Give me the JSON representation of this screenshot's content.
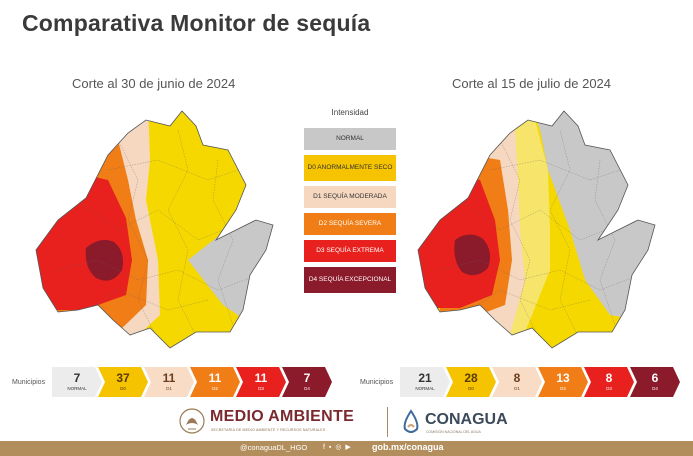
{
  "header": {
    "title": "Comparativa Monitor de sequía"
  },
  "maps": [
    {
      "caption": "Corte al 30 de junio de 2024"
    },
    {
      "caption": "Corte al 15 de julio de 2024"
    }
  ],
  "legend": {
    "title": "Intensidad",
    "items": [
      {
        "label": "NORMAL",
        "color": "#c8c8c8"
      },
      {
        "label": "D0 ANORMALMENTE SECO",
        "color": "#f5c300"
      },
      {
        "label": "D1 SEQUÍA MODERADA",
        "color": "#f6d7bf"
      },
      {
        "label": "D2 SEQUÍA SEVERA",
        "color": "#f07d16"
      },
      {
        "label": "D3 SEQUÍA EXTREMA",
        "color": "#e8211e"
      },
      {
        "label": "D4 SEQUÍA EXCEPCIONAL",
        "color": "#8b1a2b"
      }
    ]
  },
  "municipios": {
    "label": "Municipios",
    "left": [
      {
        "value": "7",
        "level": "NORMAL"
      },
      {
        "value": "37",
        "level": "D0"
      },
      {
        "value": "11",
        "level": "D1"
      },
      {
        "value": "11",
        "level": "D2"
      },
      {
        "value": "11",
        "level": "D3"
      },
      {
        "value": "7",
        "level": "D4"
      }
    ],
    "right": [
      {
        "value": "21",
        "level": "NORMAL"
      },
      {
        "value": "28",
        "level": "D0"
      },
      {
        "value": "8",
        "level": "D1"
      },
      {
        "value": "13",
        "level": "D2"
      },
      {
        "value": "8",
        "level": "D3"
      },
      {
        "value": "6",
        "level": "D4"
      }
    ]
  },
  "logos": {
    "medio_ambiente": "MEDIO AMBIENTE",
    "medio_ambiente_sub": "SECRETARÍA DE MEDIO AMBIENTE Y RECURSOS NATURALES",
    "conagua": "CONAGUA",
    "conagua_sub": "COMISIÓN NACIONAL DEL AGUA"
  },
  "footer": {
    "social_handle": "@conaguaDL_HGO",
    "social_icons": "f ▪ ◎ ▶",
    "website": "gob.mx/conagua"
  }
}
